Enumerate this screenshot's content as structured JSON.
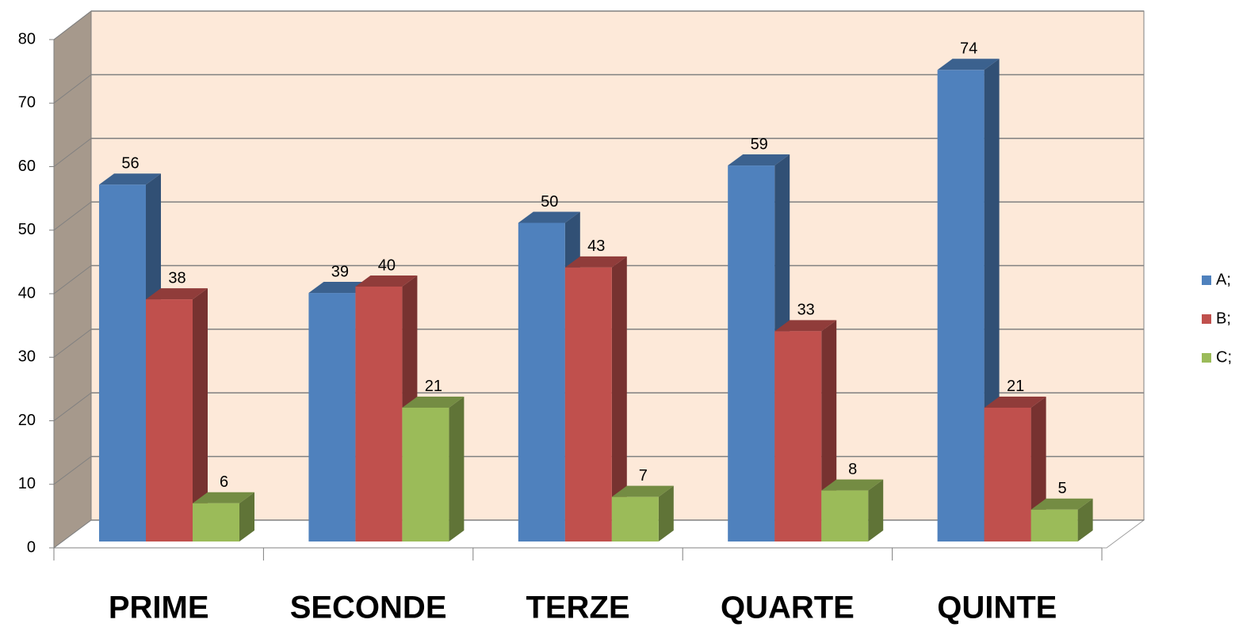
{
  "chart_data": {
    "type": "bar3d",
    "categories": [
      "PRIME",
      "SECONDE",
      "TERZE",
      "QUARTE",
      "QUINTE"
    ],
    "series": [
      {
        "name": "A;",
        "color": "#4f81bd",
        "values": [
          56,
          39,
          50,
          59,
          74
        ]
      },
      {
        "name": "B;",
        "color": "#c0504d",
        "values": [
          38,
          40,
          43,
          33,
          21
        ]
      },
      {
        "name": "C;",
        "color": "#9bbb59",
        "values": [
          6,
          21,
          7,
          8,
          5
        ]
      }
    ],
    "ylim": [
      0,
      80
    ],
    "yticks": [
      0,
      10,
      20,
      30,
      40,
      50,
      60,
      70,
      80
    ],
    "grid": true,
    "legend": "right"
  }
}
